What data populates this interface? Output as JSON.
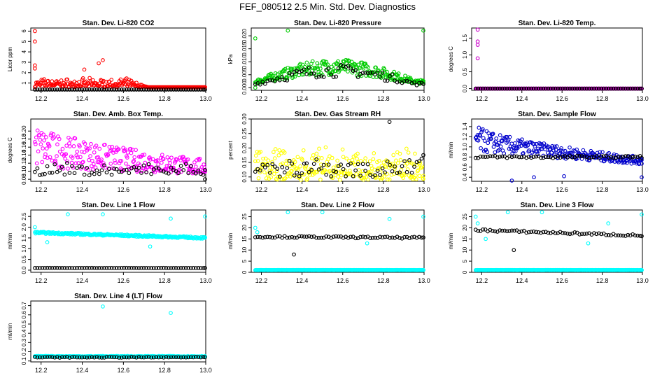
{
  "figure": {
    "title": "FEF_080512  2.5 Min. Std. Dev. Diagnostics"
  },
  "chart_data": [
    {
      "type": "scatter",
      "title": "Stan. Dev. Li-820 CO2",
      "xlabel": "",
      "ylabel": "Licor ppm",
      "xlim": [
        12.15,
        13.0
      ],
      "ylim": [
        0.3,
        6.3
      ],
      "xticks": [
        "12.2",
        "12.4",
        "12.6",
        "12.8",
        "13.0"
      ],
      "yticks": [
        "1",
        "2",
        "3",
        "4",
        "5",
        "6"
      ],
      "colors": {
        "main": "#ff0000",
        "black": "#000000"
      },
      "series": [
        {
          "name": "main",
          "color": "#ff0000",
          "pattern": "band",
          "base": 0.6,
          "band_top": 1.5,
          "decay_to": 0.3,
          "spikes": [
            [
              12.17,
              6.0
            ],
            [
              12.17,
              5.0
            ],
            [
              12.17,
              2.7
            ],
            [
              12.17,
              2.4
            ],
            [
              12.5,
              3.2
            ],
            [
              12.48,
              2.9
            ],
            [
              12.41,
              2.3
            ]
          ]
        },
        {
          "name": "black",
          "color": "#000000",
          "pattern": "flat",
          "level": 0.3
        }
      ]
    },
    {
      "type": "scatter",
      "title": "Stan. Dev. Li-820 Pressure",
      "xlabel": "",
      "ylabel": "kPa",
      "xlim": [
        12.15,
        13.0
      ],
      "ylim": [
        -0.001,
        0.023
      ],
      "xticks": [
        "12.2",
        "12.4",
        "12.6",
        "12.8",
        "13.0"
      ],
      "yticks": [
        "0.000",
        "0.005",
        "0.010",
        "0.015",
        "0.020"
      ],
      "colors": {
        "main": "#00cc00",
        "black": "#000000"
      },
      "series": [
        {
          "name": "main",
          "color": "#00cc00",
          "pattern": "hump",
          "low": 0.003,
          "high": 0.011,
          "spikes": [
            [
              12.33,
              0.022
            ],
            [
              13.0,
              0.022
            ],
            [
              12.17,
              0.019
            ],
            [
              12.17,
              0.0
            ]
          ]
        },
        {
          "name": "black",
          "color": "#000000",
          "pattern": "hump",
          "low": 0.002,
          "high": 0.009
        }
      ]
    },
    {
      "type": "scatter",
      "title": "Stan. Dev. Li-820 Temp.",
      "xlabel": "",
      "ylabel": "degrees C",
      "xlim": [
        12.15,
        13.0
      ],
      "ylim": [
        -0.05,
        1.8
      ],
      "xticks": [
        "12.2",
        "12.4",
        "12.6",
        "12.8",
        "13.0"
      ],
      "yticks": [
        "0.0",
        "0.5",
        "1.0",
        "1.5"
      ],
      "colors": {
        "main": "#cc00cc",
        "black": "#000000"
      },
      "series": [
        {
          "name": "main",
          "color": "#cc00cc",
          "pattern": "flat",
          "level": 0.0,
          "spikes": [
            [
              12.18,
              1.75
            ],
            [
              12.18,
              1.4
            ],
            [
              12.18,
              1.3
            ],
            [
              12.18,
              0.9
            ]
          ]
        },
        {
          "name": "black",
          "color": "#000000",
          "pattern": "flat",
          "level": 0.0
        }
      ]
    },
    {
      "type": "scatter",
      "title": "Stan. Dev. Amb. Box Temp.",
      "xlabel": "",
      "ylabel": "degrees C",
      "xlim": [
        12.15,
        13.0
      ],
      "ylim": [
        0.075,
        0.23
      ],
      "xticks": [
        "12.2",
        "12.4",
        "12.6",
        "12.8",
        "13.0"
      ],
      "yticks": [
        "0.08",
        "0.10",
        "0.12",
        "0.14",
        "0.16",
        "0.18",
        "0.20"
      ],
      "colors": {
        "main": "#ff00ff",
        "black": "#000000"
      },
      "series": [
        {
          "name": "main",
          "color": "#ff00ff",
          "pattern": "decay",
          "start_low": 0.11,
          "start_high": 0.22,
          "end_low": 0.09,
          "end_high": 0.13
        },
        {
          "name": "black",
          "color": "#000000",
          "pattern": "band",
          "base": 0.09,
          "band_top": 0.125,
          "spikes": [
            [
              13.0,
              0.08
            ]
          ]
        }
      ]
    },
    {
      "type": "scatter",
      "title": "Stan. Dev. Gas Stream RH",
      "xlabel": "",
      "ylabel": "percent",
      "xlim": [
        12.15,
        13.0
      ],
      "ylim": [
        0.085,
        0.3
      ],
      "xticks": [
        "12.2",
        "12.4",
        "12.6",
        "12.8",
        "13.0"
      ],
      "yticks": [
        "0.10",
        "0.15",
        "0.20",
        "0.25",
        "0.30"
      ],
      "colors": {
        "main": "#ffff00",
        "black": "#000000"
      },
      "series": [
        {
          "name": "main",
          "color": "#ffff00",
          "pattern": "band",
          "base": 0.09,
          "band_top": 0.21
        },
        {
          "name": "black",
          "color": "#000000",
          "pattern": "band",
          "base": 0.1,
          "band_top": 0.2,
          "spikes": [
            [
              12.83,
              0.29
            ]
          ]
        }
      ]
    },
    {
      "type": "scatter",
      "title": "Stan. Dev. Sample Flow",
      "xlabel": "",
      "ylabel": "ml/min",
      "xlim": [
        12.15,
        13.0
      ],
      "ylim": [
        0.32,
        1.55
      ],
      "xticks": [
        "12.2",
        "12.4",
        "12.6",
        "12.8",
        "13.0"
      ],
      "yticks": [
        "0.4",
        "0.6",
        "0.8",
        "1.0",
        "1.2",
        "1.4"
      ],
      "colors": {
        "main": "#0000cc",
        "black": "#000000"
      },
      "series": [
        {
          "name": "main",
          "color": "#0000cc",
          "pattern": "decay",
          "start_low": 0.9,
          "start_high": 1.45,
          "end_low": 0.65,
          "end_high": 0.8,
          "spikes": [
            [
              12.35,
              0.33
            ],
            [
              12.46,
              0.4
            ],
            [
              12.61,
              0.42
            ],
            [
              13.0,
              0.4
            ]
          ]
        },
        {
          "name": "black",
          "color": "#000000",
          "pattern": "flat",
          "level": 0.8
        }
      ]
    },
    {
      "type": "scatter",
      "title": "Stan. Dev. Line 1 Flow",
      "xlabel": "",
      "ylabel": "ml/min",
      "xlim": [
        12.15,
        13.0
      ],
      "ylim": [
        -0.1,
        2.8
      ],
      "xticks": [
        "12.2",
        "12.4",
        "12.6",
        "12.8",
        "13.0"
      ],
      "yticks": [
        "0.0",
        "0.5",
        "1.0",
        "1.5",
        "2.0",
        "2.5"
      ],
      "colors": {
        "main": "#00ffff",
        "black": "#000000"
      },
      "series": [
        {
          "name": "main",
          "color": "#00ffff",
          "pattern": "slope",
          "start": 1.75,
          "end": 1.5,
          "spikes": [
            [
              12.17,
              2.0
            ],
            [
              12.33,
              2.6
            ],
            [
              12.5,
              2.6
            ],
            [
              12.83,
              2.4
            ],
            [
              13.0,
              2.5
            ],
            [
              12.73,
              1.1
            ],
            [
              12.23,
              1.3
            ]
          ]
        },
        {
          "name": "black",
          "color": "#000000",
          "pattern": "flat",
          "level": 0.1
        }
      ]
    },
    {
      "type": "scatter",
      "title": "Stan. Dev. Line 2 Flow",
      "xlabel": "",
      "ylabel": "ml/min",
      "xlim": [
        12.15,
        13.0
      ],
      "ylim": [
        0,
        28
      ],
      "xticks": [
        "12.2",
        "12.4",
        "12.6",
        "12.8",
        "13.0"
      ],
      "yticks": [
        "0",
        "5",
        "10",
        "15",
        "20",
        "25"
      ],
      "colors": {
        "main": "#00ffff",
        "black": "#000000"
      },
      "series": [
        {
          "name": "main",
          "color": "#00ffff",
          "pattern": "flat",
          "level": 1.0,
          "spikes": [
            [
              12.17,
              20.0
            ],
            [
              12.18,
              18.0
            ],
            [
              12.33,
              27.0
            ],
            [
              12.5,
              27.0
            ],
            [
              12.83,
              24.0
            ],
            [
              13.0,
              25.0
            ],
            [
              12.72,
              13.0
            ]
          ]
        },
        {
          "name": "black",
          "color": "#000000",
          "pattern": "slope",
          "start": 16.0,
          "end": 15.5,
          "spikes": [
            [
              12.36,
              8.0
            ]
          ]
        }
      ]
    },
    {
      "type": "scatter",
      "title": "Stan. Dev. Line 3 Flow",
      "xlabel": "",
      "ylabel": "ml/min",
      "xlim": [
        12.15,
        13.0
      ],
      "ylim": [
        0,
        28
      ],
      "xticks": [
        "12.2",
        "12.4",
        "12.6",
        "12.8",
        "13.0"
      ],
      "yticks": [
        "0",
        "5",
        "10",
        "15",
        "20",
        "25"
      ],
      "colors": {
        "main": "#00ffff",
        "black": "#000000"
      },
      "series": [
        {
          "name": "main",
          "color": "#00ffff",
          "pattern": "flat",
          "level": 1.0,
          "spikes": [
            [
              12.17,
              25.0
            ],
            [
              12.18,
              22.0
            ],
            [
              12.33,
              27.0
            ],
            [
              12.5,
              27.0
            ],
            [
              12.83,
              22.0
            ],
            [
              13.0,
              26.0
            ],
            [
              12.22,
              15.0
            ],
            [
              12.73,
              13.0
            ]
          ]
        },
        {
          "name": "black",
          "color": "#000000",
          "pattern": "slope",
          "start": 19.0,
          "end": 16.5,
          "spikes": [
            [
              12.36,
              10.0
            ]
          ]
        }
      ]
    },
    {
      "type": "scatter",
      "title": "Stan. Dev. Line 4 (LT) Flow",
      "xlabel": "",
      "ylabel": "ml/min",
      "xlim": [
        12.15,
        13.0
      ],
      "ylim": [
        0.09,
        0.75
      ],
      "xticks": [
        "12.2",
        "12.4",
        "12.6",
        "12.8",
        "13.0"
      ],
      "yticks": [
        "0.1",
        "0.2",
        "0.3",
        "0.4",
        "0.5",
        "0.6",
        "0.7"
      ],
      "colors": {
        "main": "#00ffff",
        "black": "#000000"
      },
      "series": [
        {
          "name": "main",
          "color": "#00ffff",
          "pattern": "flat",
          "level": 0.15,
          "spikes": [
            [
              12.5,
              0.69
            ],
            [
              12.83,
              0.62
            ]
          ]
        },
        {
          "name": "black",
          "color": "#000000",
          "pattern": "flat",
          "level": 0.14
        }
      ]
    }
  ]
}
